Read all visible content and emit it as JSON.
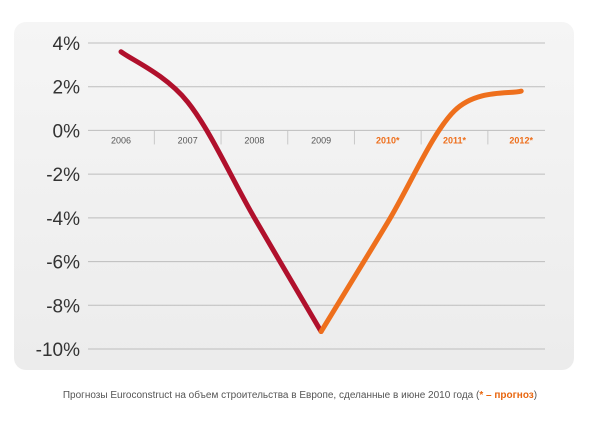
{
  "chart_data": {
    "type": "line",
    "title": "",
    "xlabel": "",
    "ylabel": "",
    "categories": [
      "2006",
      "2007",
      "2008",
      "2009",
      "2010*",
      "2011*",
      "2012*"
    ],
    "y_ticks": [
      "4%",
      "2%",
      "0%",
      "-2%",
      "-4%",
      "-6%",
      "-8%",
      "-10%"
    ],
    "ylim": [
      -10,
      4
    ],
    "grid": true,
    "series": [
      {
        "segment": "actual",
        "color": "#b0102c",
        "x": [
          "2006",
          "2007",
          "2008",
          "2009"
        ],
        "values": [
          3.6,
          1.3,
          -4.0,
          -9.2
        ]
      },
      {
        "segment": "forecast",
        "color": "#ee6f1c",
        "x": [
          "2009",
          "2010*",
          "2011*",
          "2012*"
        ],
        "values": [
          -9.2,
          -4.2,
          0.9,
          1.8
        ]
      }
    ],
    "actual_color": "#b0102c",
    "forecast_color": "#ee6f1c"
  },
  "caption": {
    "text": "Прогнозы Euroconstruct на объем строительства в Европе, сделанные в июне 2010 года (",
    "note": "* – прогноз",
    "close": ")"
  }
}
